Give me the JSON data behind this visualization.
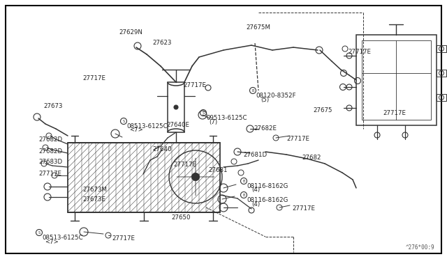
{
  "bg_color": "#ffffff",
  "diagram_color": "#333333",
  "fig_width": 6.4,
  "fig_height": 3.72,
  "dpi": 100,
  "watermark": "^276*00:9",
  "labels": [
    [
      "27629N",
      170,
      42
    ],
    [
      "27623",
      218,
      57
    ],
    [
      "27675M",
      352,
      35
    ],
    [
      "27717E",
      498,
      70
    ],
    [
      "27717E",
      118,
      108
    ],
    [
      "27717E",
      262,
      118
    ],
    [
      "B 08120-8352F",
      358,
      128
    ],
    [
      "(5)",
      373,
      139
    ],
    [
      "27675",
      448,
      154
    ],
    [
      "27717E",
      548,
      158
    ],
    [
      "27673",
      62,
      148
    ],
    [
      "S 08513-6125C",
      173,
      172
    ],
    [
      "<7>",
      185,
      182
    ],
    [
      "S 09513-6125C",
      287,
      160
    ],
    [
      "(7)",
      299,
      171
    ],
    [
      "27640E",
      238,
      175
    ],
    [
      "27682E",
      363,
      180
    ],
    [
      "27717E",
      410,
      195
    ],
    [
      "27682D",
      55,
      196
    ],
    [
      "27682D",
      55,
      213
    ],
    [
      "27640",
      218,
      210
    ],
    [
      "27681D",
      348,
      218
    ],
    [
      "27682",
      432,
      222
    ],
    [
      "27683D",
      55,
      228
    ],
    [
      "27717E",
      248,
      232
    ],
    [
      "27681",
      298,
      240
    ],
    [
      "27717E",
      55,
      245
    ],
    [
      "B 08116-8162G",
      345,
      258
    ],
    [
      "(4)",
      360,
      268
    ],
    [
      "B 08116-8162G",
      345,
      278
    ],
    [
      "(4)",
      360,
      289
    ],
    [
      "27673M",
      118,
      268
    ],
    [
      "27673E",
      118,
      282
    ],
    [
      "27650",
      245,
      308
    ],
    [
      "27717E",
      418,
      295
    ],
    [
      "S 08513-6125C",
      52,
      332
    ],
    [
      "<7>",
      64,
      343
    ],
    [
      "27717E",
      160,
      338
    ]
  ]
}
